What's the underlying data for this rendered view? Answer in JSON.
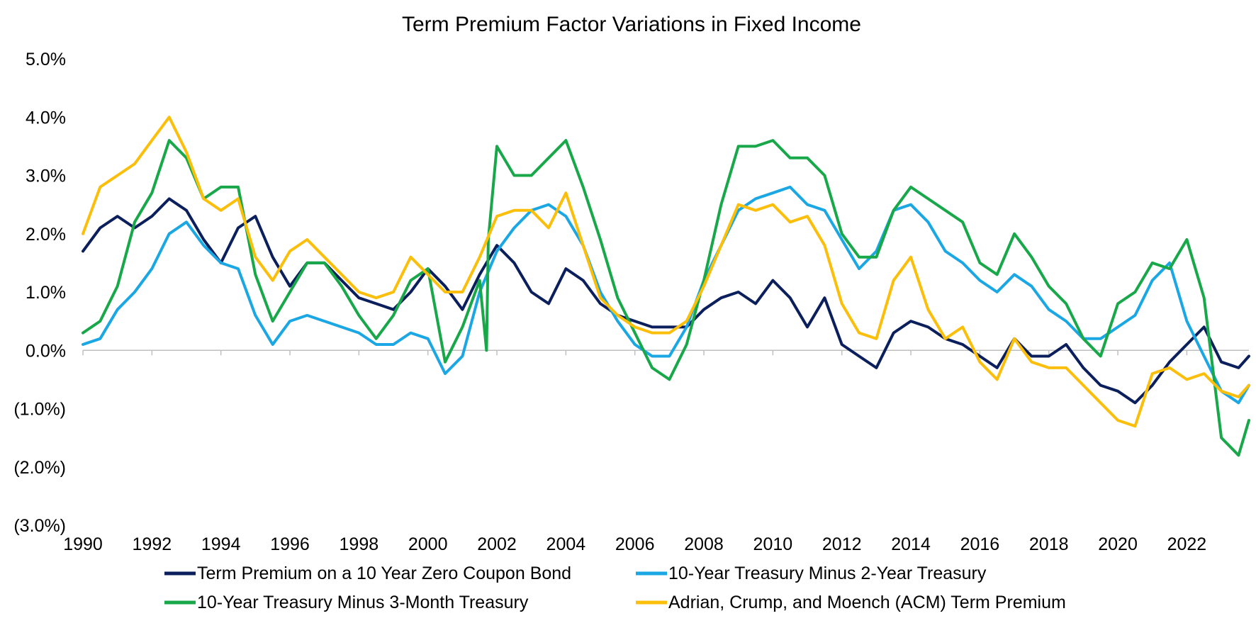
{
  "chart_data": {
    "type": "line",
    "title": "Term Premium Factor Variations in Fixed Income",
    "xlabel": "",
    "ylabel": "",
    "xlim": [
      1990,
      2023.8
    ],
    "ylim": [
      -3.0,
      5.0
    ],
    "x_ticks": [
      1990,
      1992,
      1994,
      1996,
      1998,
      2000,
      2002,
      2004,
      2006,
      2008,
      2010,
      2012,
      2014,
      2016,
      2018,
      2020,
      2022
    ],
    "x_tick_labels": [
      "1990",
      "1992",
      "1994",
      "1996",
      "1998",
      "2000",
      "2002",
      "2004",
      "2006",
      "2008",
      "2010",
      "2012",
      "2014",
      "2016",
      "2018",
      "2020",
      "2022"
    ],
    "y_ticks": [
      5.0,
      4.0,
      3.0,
      2.0,
      1.0,
      0.0,
      -1.0,
      -2.0,
      -3.0
    ],
    "y_tick_labels": [
      "5.0%",
      "4.0%",
      "3.0%",
      "2.0%",
      "1.0%",
      "0.0%",
      "(1.0%)",
      "(2.0%)",
      "(3.0%)"
    ],
    "grid": false,
    "legend_position": "bottom",
    "series": [
      {
        "name": "Term Premium on a 10 Year Zero Coupon Bond",
        "color": "#0b1f5c",
        "x": [
          1990.0,
          1990.5,
          1991.0,
          1991.5,
          1992.0,
          1992.5,
          1993.0,
          1993.5,
          1994.0,
          1994.5,
          1995.0,
          1995.5,
          1996.0,
          1996.5,
          1997.0,
          1997.5,
          1998.0,
          1998.5,
          1999.0,
          1999.5,
          2000.0,
          2000.5,
          2001.0,
          2001.5,
          2002.0,
          2002.5,
          2003.0,
          2003.5,
          2004.0,
          2004.5,
          2005.0,
          2005.5,
          2006.0,
          2006.5,
          2007.0,
          2007.5,
          2008.0,
          2008.5,
          2009.0,
          2009.5,
          2010.0,
          2010.5,
          2011.0,
          2011.5,
          2012.0,
          2012.5,
          2013.0,
          2013.5,
          2014.0,
          2014.5,
          2015.0,
          2015.5,
          2016.0,
          2016.5,
          2017.0,
          2017.5,
          2018.0,
          2018.5,
          2019.0,
          2019.5,
          2020.0,
          2020.5,
          2021.0,
          2021.5,
          2022.0,
          2022.5,
          2023.0,
          2023.5,
          2023.8
        ],
        "y": [
          1.7,
          2.1,
          2.3,
          2.1,
          2.3,
          2.6,
          2.4,
          1.9,
          1.5,
          2.1,
          2.3,
          1.6,
          1.1,
          1.5,
          1.5,
          1.2,
          0.9,
          0.8,
          0.7,
          1.0,
          1.4,
          1.1,
          0.7,
          1.3,
          1.8,
          1.5,
          1.0,
          0.8,
          1.4,
          1.2,
          0.8,
          0.6,
          0.5,
          0.4,
          0.4,
          0.4,
          0.7,
          0.9,
          1.0,
          0.8,
          1.2,
          0.9,
          0.4,
          0.9,
          0.1,
          -0.1,
          -0.3,
          0.3,
          0.5,
          0.4,
          0.2,
          0.1,
          -0.1,
          -0.3,
          0.2,
          -0.1,
          -0.1,
          0.1,
          -0.3,
          -0.6,
          -0.7,
          -0.9,
          -0.6,
          -0.2,
          0.1,
          0.4,
          -0.2,
          -0.3,
          -0.1
        ]
      },
      {
        "name": "10-Year Treasury Minus 2-Year Treasury",
        "color": "#1aa7e3",
        "x": [
          1990.0,
          1990.5,
          1991.0,
          1991.5,
          1992.0,
          1992.5,
          1993.0,
          1993.5,
          1994.0,
          1994.5,
          1995.0,
          1995.5,
          1996.0,
          1996.5,
          1997.0,
          1997.5,
          1998.0,
          1998.5,
          1999.0,
          1999.5,
          2000.0,
          2000.5,
          2001.0,
          2001.5,
          2002.0,
          2002.5,
          2003.0,
          2003.5,
          2004.0,
          2004.5,
          2005.0,
          2005.5,
          2006.0,
          2006.5,
          2007.0,
          2007.5,
          2008.0,
          2008.5,
          2009.0,
          2009.5,
          2010.0,
          2010.5,
          2011.0,
          2011.5,
          2012.0,
          2012.5,
          2013.0,
          2013.5,
          2014.0,
          2014.5,
          2015.0,
          2015.5,
          2016.0,
          2016.5,
          2017.0,
          2017.5,
          2018.0,
          2018.5,
          2019.0,
          2019.5,
          2020.0,
          2020.5,
          2021.0,
          2021.5,
          2022.0,
          2022.5,
          2023.0,
          2023.5,
          2023.8
        ],
        "y": [
          0.1,
          0.2,
          0.7,
          1.0,
          1.4,
          2.0,
          2.2,
          1.8,
          1.5,
          1.4,
          0.6,
          0.1,
          0.5,
          0.6,
          0.5,
          0.4,
          0.3,
          0.1,
          0.1,
          0.3,
          0.2,
          -0.4,
          -0.1,
          1.0,
          1.7,
          2.1,
          2.4,
          2.5,
          2.3,
          1.8,
          1.0,
          0.5,
          0.1,
          -0.1,
          -0.1,
          0.4,
          1.2,
          1.8,
          2.4,
          2.6,
          2.7,
          2.8,
          2.5,
          2.4,
          1.9,
          1.4,
          1.7,
          2.4,
          2.5,
          2.2,
          1.7,
          1.5,
          1.2,
          1.0,
          1.3,
          1.1,
          0.7,
          0.5,
          0.2,
          0.2,
          0.4,
          0.6,
          1.2,
          1.5,
          0.5,
          -0.1,
          -0.7,
          -0.9,
          -0.6
        ]
      },
      {
        "name": "10-Year Treasury Minus 3-Month Treasury",
        "color": "#18a84a",
        "x": [
          1990.0,
          1990.5,
          1991.0,
          1991.5,
          1992.0,
          1992.5,
          1993.0,
          1993.5,
          1994.0,
          1994.5,
          1995.0,
          1995.5,
          1996.0,
          1996.5,
          1997.0,
          1997.5,
          1998.0,
          1998.5,
          1999.0,
          1999.5,
          2000.0,
          2000.5,
          2001.0,
          2001.5,
          2001.7,
          2001.75,
          2002.0,
          2002.5,
          2003.0,
          2003.5,
          2004.0,
          2004.5,
          2005.0,
          2005.5,
          2006.0,
          2006.5,
          2007.0,
          2007.5,
          2008.0,
          2008.5,
          2009.0,
          2009.5,
          2010.0,
          2010.5,
          2011.0,
          2011.5,
          2012.0,
          2012.5,
          2013.0,
          2013.5,
          2014.0,
          2014.5,
          2015.0,
          2015.5,
          2016.0,
          2016.5,
          2017.0,
          2017.5,
          2018.0,
          2018.5,
          2019.0,
          2019.5,
          2020.0,
          2020.5,
          2021.0,
          2021.5,
          2022.0,
          2022.5,
          2023.0,
          2023.5,
          2023.8
        ],
        "y": [
          0.3,
          0.5,
          1.1,
          2.2,
          2.7,
          3.6,
          3.3,
          2.6,
          2.8,
          2.8,
          1.3,
          0.5,
          1.0,
          1.5,
          1.5,
          1.1,
          0.6,
          0.2,
          0.6,
          1.2,
          1.4,
          -0.2,
          0.4,
          1.2,
          0.0,
          1.9,
          3.5,
          3.0,
          3.0,
          3.3,
          3.6,
          2.8,
          1.9,
          0.9,
          0.3,
          -0.3,
          -0.5,
          0.1,
          1.2,
          2.5,
          3.5,
          3.5,
          3.6,
          3.3,
          3.3,
          3.0,
          2.0,
          1.6,
          1.6,
          2.4,
          2.8,
          2.6,
          2.4,
          2.2,
          1.5,
          1.3,
          2.0,
          1.6,
          1.1,
          0.8,
          0.2,
          -0.1,
          0.8,
          1.0,
          1.5,
          1.4,
          1.9,
          0.9,
          -1.5,
          -1.8,
          -1.2
        ]
      },
      {
        "name": "Adrian, Crump, and Moench (ACM) Term Premium",
        "color": "#fbbf0b",
        "x": [
          1990.0,
          1990.5,
          1991.0,
          1991.5,
          1992.0,
          1992.5,
          1993.0,
          1993.5,
          1994.0,
          1994.5,
          1995.0,
          1995.5,
          1996.0,
          1996.5,
          1997.0,
          1997.5,
          1998.0,
          1998.5,
          1999.0,
          1999.5,
          2000.0,
          2000.5,
          2001.0,
          2001.5,
          2002.0,
          2002.5,
          2003.0,
          2003.5,
          2004.0,
          2004.5,
          2005.0,
          2005.5,
          2006.0,
          2006.5,
          2007.0,
          2007.5,
          2008.0,
          2008.5,
          2009.0,
          2009.5,
          2010.0,
          2010.5,
          2011.0,
          2011.5,
          2012.0,
          2012.5,
          2013.0,
          2013.5,
          2014.0,
          2014.5,
          2015.0,
          2015.5,
          2016.0,
          2016.5,
          2017.0,
          2017.5,
          2018.0,
          2018.5,
          2019.0,
          2019.5,
          2020.0,
          2020.5,
          2021.0,
          2021.5,
          2022.0,
          2022.5,
          2023.0,
          2023.5,
          2023.8
        ],
        "y": [
          2.0,
          2.8,
          3.0,
          3.2,
          3.6,
          4.0,
          3.4,
          2.6,
          2.4,
          2.6,
          1.6,
          1.2,
          1.7,
          1.9,
          1.6,
          1.3,
          1.0,
          0.9,
          1.0,
          1.6,
          1.3,
          1.0,
          1.0,
          1.6,
          2.3,
          2.4,
          2.4,
          2.1,
          2.7,
          1.8,
          0.9,
          0.6,
          0.4,
          0.3,
          0.3,
          0.5,
          1.1,
          1.8,
          2.5,
          2.4,
          2.5,
          2.2,
          2.3,
          1.8,
          0.8,
          0.3,
          0.2,
          1.2,
          1.6,
          0.7,
          0.2,
          0.4,
          -0.2,
          -0.5,
          0.2,
          -0.2,
          -0.3,
          -0.3,
          -0.6,
          -0.9,
          -1.2,
          -1.3,
          -0.4,
          -0.3,
          -0.5,
          -0.4,
          -0.7,
          -0.8,
          -0.6
        ]
      }
    ]
  }
}
